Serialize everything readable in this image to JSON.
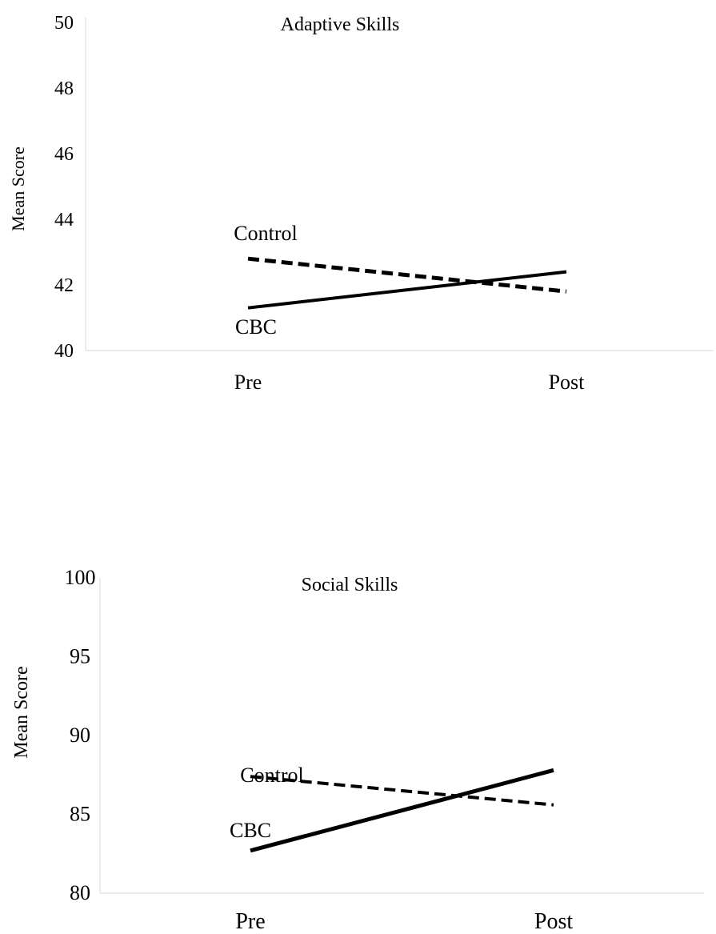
{
  "chart_data": [
    {
      "type": "line",
      "title": "Adaptive Skills",
      "ylabel": "Mean Score",
      "xlabel": "",
      "categories": [
        "Pre",
        "Post"
      ],
      "ylim": [
        40,
        50
      ],
      "yticks": [
        40,
        42,
        44,
        46,
        48,
        50
      ],
      "grid": false,
      "series": [
        {
          "name": "Control",
          "values": [
            42.8,
            41.8
          ],
          "style": "dashed",
          "color": "#000000"
        },
        {
          "name": "CBC",
          "values": [
            41.3,
            42.4
          ],
          "style": "solid",
          "color": "#000000"
        }
      ]
    },
    {
      "type": "line",
      "title": "Social Skills",
      "ylabel": "Mean Score",
      "xlabel": "",
      "categories": [
        "Pre",
        "Post"
      ],
      "ylim": [
        80,
        100
      ],
      "yticks": [
        80,
        85,
        90,
        95,
        100
      ],
      "grid": false,
      "series": [
        {
          "name": "Control",
          "values": [
            87.4,
            85.6
          ],
          "style": "dashed",
          "color": "#000000"
        },
        {
          "name": "CBC",
          "values": [
            82.7,
            87.8
          ],
          "style": "solid",
          "color": "#000000"
        }
      ]
    }
  ]
}
